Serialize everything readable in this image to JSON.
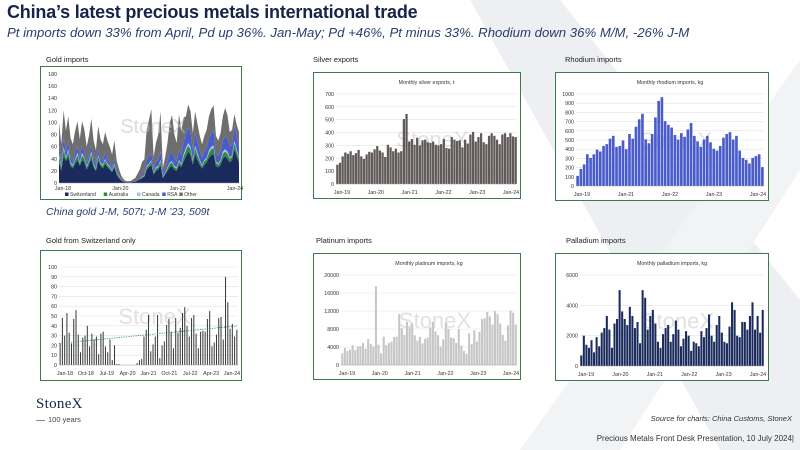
{
  "header": {
    "title": "China’s latest precious metals international trade",
    "subtitle": "Pt imports down 33% from April, Pd up 36%.  Jan-May; Pd +46%, Pt minus 33%.  Rhodium down 36% M/M, -26% J-M"
  },
  "panels": {
    "gold": {
      "title": "Gold imports",
      "note": "China gold J-M, 507t; J-M ’23, 509t"
    },
    "silver": {
      "title": "Silver exports"
    },
    "rhodium": {
      "title": "Rhodium imports"
    },
    "swiss": {
      "title": "Gold from Switzerland only"
    },
    "platinum": {
      "title": "Platinum imports"
    },
    "palladium": {
      "title": "Palladium imports"
    }
  },
  "watermark": "StoneX",
  "logo": {
    "name": "StoneX",
    "sub": "100 years"
  },
  "source": "Source for charts: China Customs, StoneX",
  "footer": "Precious Metals Front Desk Presentation, 10 July 2024|",
  "colors": {
    "navy": "#17244a",
    "frame": "#3b7a4a",
    "silver": "#5f5a58",
    "rhodium": "#4a5ccc",
    "platinum": "#c6c6c6",
    "palladium": "#1b2a5c",
    "swiss": "#3a3a3a"
  },
  "chart_data": [
    {
      "id": "gold",
      "type": "area",
      "title": "",
      "xlabel": "",
      "ylabel": "",
      "ylim": [
        0,
        180
      ],
      "yticks": [
        0,
        20,
        40,
        60,
        80,
        100,
        120,
        140,
        160,
        180
      ],
      "xticks": [
        "Jan-18",
        "Jan-20",
        "Jan-22",
        "Jan-24"
      ],
      "legend": [
        "Switzerland",
        "Australia",
        "Canada",
        "RSA",
        "Other"
      ],
      "legend_position": "bottom",
      "series": [
        {
          "name": "Switzerland",
          "color": "#1b2a5c",
          "values": [
            34,
            20,
            46,
            36,
            44,
            28,
            24,
            32,
            38,
            28,
            38,
            34,
            22,
            30,
            40,
            26,
            20,
            38,
            28,
            24,
            32,
            26,
            22,
            18,
            26,
            14,
            8,
            4,
            2,
            1,
            1,
            1,
            2,
            2,
            4,
            6,
            8,
            10,
            22,
            26,
            30,
            14,
            20,
            22,
            30,
            8,
            14,
            20,
            26,
            28,
            22,
            20,
            30,
            26,
            36,
            44,
            52,
            46,
            30,
            48,
            38,
            30,
            24,
            30,
            34,
            42,
            46,
            48,
            28,
            26,
            30,
            40,
            44,
            40,
            34,
            38,
            56,
            44,
            34
          ]
        },
        {
          "name": "Australia",
          "color": "#2e8b3e",
          "values": [
            10,
            6,
            10,
            4,
            8,
            4,
            4,
            6,
            8,
            4,
            8,
            6,
            4,
            6,
            8,
            4,
            2,
            6,
            4,
            4,
            6,
            4,
            4,
            2,
            4,
            2,
            2,
            1,
            1,
            0,
            0,
            0,
            0,
            0,
            0,
            0,
            2,
            2,
            4,
            4,
            6,
            2,
            4,
            4,
            6,
            2,
            2,
            4,
            6,
            6,
            4,
            4,
            6,
            4,
            8,
            10,
            10,
            10,
            6,
            10,
            8,
            6,
            4,
            6,
            6,
            8,
            10,
            10,
            6,
            4,
            6,
            8,
            8,
            8,
            6,
            6,
            10,
            8,
            6
          ]
        },
        {
          "name": "Canada",
          "color": "#a7c5e0",
          "values": [
            4,
            2,
            4,
            2,
            4,
            2,
            2,
            2,
            4,
            2,
            4,
            2,
            2,
            2,
            4,
            2,
            2,
            2,
            2,
            2,
            2,
            2,
            2,
            1,
            2,
            1,
            1,
            0,
            0,
            0,
            0,
            0,
            0,
            0,
            0,
            0,
            1,
            1,
            2,
            2,
            2,
            1,
            2,
            2,
            2,
            1,
            1,
            2,
            2,
            2,
            2,
            2,
            2,
            2,
            4,
            4,
            4,
            4,
            2,
            4,
            4,
            2,
            2,
            2,
            2,
            4,
            4,
            4,
            2,
            2,
            2,
            4,
            4,
            4,
            2,
            2,
            4,
            4,
            2
          ]
        },
        {
          "name": "RSA",
          "color": "#4a5ccc",
          "values": [
            14,
            6,
            16,
            10,
            14,
            8,
            6,
            10,
            12,
            8,
            12,
            10,
            6,
            8,
            12,
            8,
            6,
            10,
            8,
            6,
            10,
            8,
            6,
            4,
            8,
            4,
            2,
            1,
            0,
            0,
            0,
            0,
            0,
            0,
            1,
            2,
            4,
            4,
            10,
            12,
            14,
            6,
            10,
            10,
            14,
            4,
            6,
            10,
            14,
            16,
            12,
            10,
            16,
            14,
            20,
            22,
            26,
            24,
            14,
            22,
            18,
            14,
            12,
            14,
            16,
            20,
            22,
            24,
            14,
            12,
            14,
            18,
            22,
            20,
            18,
            18,
            26,
            20,
            16
          ]
        },
        {
          "name": "Other",
          "color": "#6e6e6e",
          "values": [
            38,
            30,
            44,
            34,
            40,
            32,
            28,
            36,
            40,
            30,
            40,
            36,
            26,
            32,
            42,
            30,
            24,
            38,
            30,
            28,
            34,
            30,
            26,
            22,
            30,
            16,
            10,
            6,
            3,
            2,
            2,
            2,
            4,
            6,
            10,
            14,
            20,
            22,
            50,
            60,
            70,
            20,
            30,
            42,
            66,
            10,
            20,
            30,
            52,
            60,
            40,
            30,
            60,
            40,
            40,
            30,
            38,
            34,
            30,
            34,
            30,
            26,
            22,
            26,
            30,
            36,
            40,
            42,
            28,
            26,
            30,
            40,
            46,
            40,
            24,
            24,
            18,
            20,
            26
          ]
        }
      ]
    },
    {
      "id": "silver",
      "type": "bar",
      "title": "Monthly silver exports, t",
      "ylim": [
        0,
        700
      ],
      "yticks": [
        0,
        100,
        200,
        300,
        400,
        500,
        600,
        700
      ],
      "xticks": [
        "Jan-19",
        "Jan-20",
        "Jan-21",
        "Jan-22",
        "Jan-23",
        "Jan-24"
      ],
      "series": [
        {
          "name": "",
          "values": [
            150,
            165,
            215,
            245,
            235,
            255,
            225,
            240,
            265,
            215,
            195,
            230,
            250,
            245,
            270,
            295,
            260,
            245,
            210,
            305,
            285,
            255,
            275,
            245,
            255,
            505,
            545,
            330,
            350,
            305,
            360,
            300,
            340,
            345,
            325,
            320,
            330,
            305,
            300,
            310,
            350,
            280,
            275,
            365,
            345,
            335,
            340,
            285,
            345,
            315,
            385,
            405,
            330,
            365,
            395,
            325,
            310,
            375,
            395,
            375,
            345,
            310,
            385,
            395,
            365,
            395,
            370,
            365
          ]
        }
      ]
    },
    {
      "id": "rhodium",
      "type": "bar",
      "title": "Monthly rhodium imports, kg",
      "ylim": [
        0,
        1000
      ],
      "yticks": [
        0,
        100,
        200,
        300,
        400,
        500,
        600,
        700,
        800,
        900,
        1000
      ],
      "xticks": [
        "Jan-19",
        "Jan-21",
        "Jan-22",
        "Jan-23",
        "Jan-24"
      ],
      "series": [
        {
          "name": "",
          "values": [
            110,
            185,
            235,
            345,
            305,
            345,
            395,
            375,
            435,
            455,
            515,
            545,
            425,
            435,
            495,
            400,
            565,
            515,
            645,
            725,
            785,
            505,
            465,
            565,
            745,
            925,
            965,
            705,
            665,
            635,
            555,
            505,
            575,
            535,
            615,
            685,
            545,
            485,
            425,
            505,
            545,
            475,
            405,
            385,
            435,
            525,
            565,
            585,
            505,
            545,
            385,
            305,
            285,
            245,
            305,
            325,
            345,
            205
          ]
        }
      ]
    },
    {
      "id": "swiss",
      "type": "bar",
      "title": "",
      "ylim": [
        0,
        100
      ],
      "yticks": [
        0,
        10,
        20,
        30,
        40,
        50,
        60,
        70,
        80,
        90,
        100
      ],
      "xticks": [
        "Jan-18",
        "Oct-18",
        "Jul-19",
        "Apr-20",
        "Jan-21",
        "Oct-21",
        "Jul-22",
        "Apr-23",
        "Jan-24"
      ],
      "trendline": {
        "style": "dotted",
        "color": "#2e8b3e",
        "from": 22,
        "to": 40
      },
      "series": [
        {
          "name": "",
          "values": [
            22,
            48,
            30,
            53,
            33,
            22,
            47,
            56,
            31,
            13,
            28,
            30,
            40,
            19,
            32,
            26,
            29,
            11,
            32,
            34,
            19,
            13,
            26,
            5,
            20,
            1,
            1,
            0,
            0,
            0,
            0,
            0,
            0,
            0,
            2,
            5,
            6,
            29,
            36,
            51,
            14,
            21,
            29,
            51,
            7,
            20,
            24,
            41,
            47,
            34,
            17,
            48,
            33,
            38,
            53,
            59,
            40,
            29,
            48,
            51,
            32,
            17,
            34,
            35,
            34,
            47,
            55,
            19,
            23,
            31,
            48,
            49,
            26,
            90,
            64,
            37,
            42,
            29,
            36
          ]
        }
      ]
    },
    {
      "id": "platinum",
      "type": "bar",
      "title": "Monthly platinum imports, kg",
      "ylim": [
        0,
        20000
      ],
      "yticks": [
        0,
        4000,
        8000,
        12000,
        16000,
        20000
      ],
      "xticks": [
        "Jan-19",
        "Jan-20",
        "Jan-21",
        "Jan-22",
        "Jan-23",
        "Jan-24"
      ],
      "series": [
        {
          "name": "",
          "values": [
            2600,
            3800,
            3100,
            3400,
            4400,
            3300,
            4100,
            4200,
            4900,
            3600,
            5800,
            4700,
            4100,
            17500,
            4500,
            2600,
            6300,
            4400,
            4900,
            5200,
            6200,
            6300,
            11300,
            8200,
            6700,
            9600,
            8400,
            9200,
            6600,
            5400,
            6200,
            4800,
            5800,
            6100,
            8400,
            9600,
            7500,
            6600,
            4100,
            5700,
            9400,
            8000,
            6100,
            6000,
            4900,
            8000,
            4300,
            3100,
            2500,
            7000,
            4700,
            7700,
            5200,
            7400,
            10200,
            10400,
            11800,
            10800,
            9000,
            12000,
            11300,
            9200,
            6700,
            5400,
            8800,
            12100,
            11600,
            9000
          ]
        }
      ]
    },
    {
      "id": "palladium",
      "type": "bar",
      "title": "Monthly palladium imports, kg",
      "ylim": [
        0,
        6000
      ],
      "yticks": [
        0,
        2000,
        4000,
        6000
      ],
      "xticks": [
        "Jan-19",
        "Jan-20",
        "Jan-21",
        "Jan-22",
        "Jan-23",
        "Jan-24"
      ],
      "series": [
        {
          "name": "",
          "values": [
            700,
            2000,
            1400,
            1200,
            1700,
            900,
            1900,
            1300,
            2200,
            2500,
            3300,
            2400,
            1200,
            2800,
            3100,
            5000,
            3600,
            3100,
            2700,
            3900,
            3300,
            2500,
            2900,
            1500,
            5000,
            4500,
            2400,
            3300,
            3700,
            2800,
            1600,
            1200,
            2100,
            2500,
            2700,
            1600,
            2100,
            3000,
            2400,
            1300,
            1800,
            2300,
            2000,
            1000,
            1600,
            1500,
            1300,
            2300,
            1900,
            2500,
            3400,
            2000,
            1600,
            2700,
            3300,
            2200,
            1600,
            1500,
            2600,
            4200,
            3700,
            2000,
            1900,
            2900,
            2900,
            2400,
            3300,
            4200,
            2400,
            3300,
            2200,
            3700
          ]
        }
      ]
    }
  ]
}
